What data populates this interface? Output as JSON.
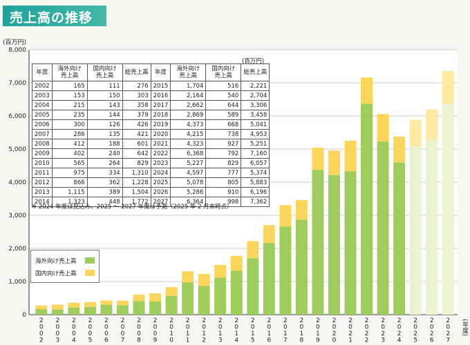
{
  "page": {
    "title": "売上高の推移",
    "unit_label": "(百万円)",
    "year_unit": "(年度)"
  },
  "table": {
    "unit": "(百万円)",
    "headers": [
      "年度",
      "海外向け 売上高",
      "国内向け 売上高",
      "総売上高"
    ],
    "note": "※ 2024 年度は見込み。2025 〜 2027 年度は予測（2025 年 2 月末時点）"
  },
  "legend": {
    "overseas": "海外外向け売上高",
    "domestic": "国内向け売上高"
  },
  "chart_data": {
    "type": "bar",
    "stacked": true,
    "categories": [
      "2002",
      "2003",
      "2004",
      "2005",
      "2006",
      "2007",
      "2008",
      "2009",
      "2010",
      "2011",
      "2012",
      "2013",
      "2014",
      "2015",
      "2016",
      "2017",
      "2018",
      "2019",
      "2020",
      "2021",
      "2022",
      "2023",
      "2024",
      "2025",
      "2026",
      "2027"
    ],
    "series": [
      {
        "name": "海外向け売上高",
        "color": "#9fcd5c",
        "values": [
          165,
          153,
          215,
          235,
          300,
          286,
          412,
          402,
          565,
          975,
          866,
          1115,
          1323,
          1704,
          2164,
          2662,
          2869,
          4373,
          4215,
          4323,
          6368,
          5227,
          4597,
          5078,
          5286,
          6364
        ]
      },
      {
        "name": "国内向け売上高",
        "color": "#fcd65a",
        "values": [
          111,
          150,
          143,
          144,
          126,
          135,
          188,
          240,
          264,
          334,
          362,
          389,
          448,
          516,
          540,
          644,
          589,
          668,
          738,
          927,
          792,
          829,
          777,
          805,
          910,
          998
        ]
      }
    ],
    "totals": [
      276,
      303,
      358,
      379,
      426,
      421,
      601,
      642,
      829,
      1310,
      1228,
      1504,
      1772,
      2221,
      2704,
      3306,
      3458,
      5041,
      4953,
      5251,
      7160,
      6057,
      5374,
      5883,
      6196,
      7362
    ],
    "forecast_categories": [
      "2025",
      "2026",
      "2027"
    ],
    "forecast_colors": {
      "overseas": "#eaf3cf",
      "domestic": "#fde9a2"
    },
    "ylim": [
      0,
      8000
    ],
    "yticks": [
      0,
      1000,
      2000,
      3000,
      4000,
      5000,
      6000,
      7000,
      8000
    ],
    "ytick_labels": [
      "0",
      "1,000",
      "2,000",
      "3,000",
      "4,000",
      "5,000",
      "6,000",
      "7,000",
      "8,000"
    ],
    "grid": true,
    "legend_position": "bottom-left",
    "xlabel": "(年度)",
    "ylabel": "(百万円)",
    "title": "売上高の推移"
  },
  "table_rows": [
    [
      "2002",
      "165",
      "111",
      "276"
    ],
    [
      "2003",
      "153",
      "150",
      "303"
    ],
    [
      "2004",
      "215",
      "143",
      "358"
    ],
    [
      "2005",
      "235",
      "144",
      "379"
    ],
    [
      "2006",
      "300",
      "126",
      "426"
    ],
    [
      "2007",
      "286",
      "135",
      "421"
    ],
    [
      "2008",
      "412",
      "188",
      "601"
    ],
    [
      "2009",
      "402",
      "240",
      "642"
    ],
    [
      "2010",
      "565",
      "264",
      "829"
    ],
    [
      "2011",
      "975",
      "334",
      "1,310"
    ],
    [
      "2012",
      "866",
      "362",
      "1,228"
    ],
    [
      "2013",
      "1,115",
      "389",
      "1,504"
    ],
    [
      "2014",
      "1,323",
      "448",
      "1,772"
    ],
    [
      "2015",
      "1,704",
      "516",
      "2,221"
    ],
    [
      "2016",
      "2,164",
      "540",
      "2,704"
    ],
    [
      "2017",
      "2,662",
      "644",
      "3,306"
    ],
    [
      "2018",
      "2,869",
      "589",
      "3,458"
    ],
    [
      "2019",
      "4,373",
      "668",
      "5,041"
    ],
    [
      "2020",
      "4,215",
      "738",
      "4,953"
    ],
    [
      "2021",
      "4,323",
      "927",
      "5,251"
    ],
    [
      "2022",
      "6,368",
      "792",
      "7,160"
    ],
    [
      "2023",
      "5,227",
      "829",
      "6,057"
    ],
    [
      "2024",
      "4,597",
      "777",
      "5,374"
    ],
    [
      "2025",
      "5,078",
      "805",
      "5,883"
    ],
    [
      "2026",
      "5,286",
      "910",
      "6,196"
    ],
    [
      "2027",
      "6,364",
      "998",
      "7,362"
    ]
  ]
}
